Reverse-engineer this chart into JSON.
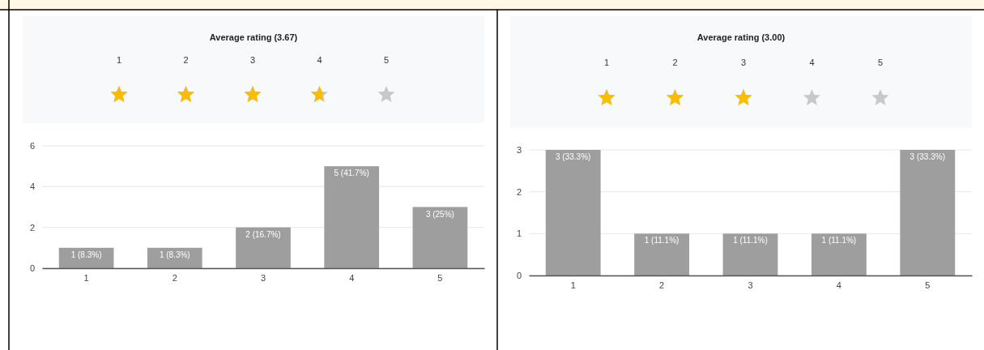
{
  "chart_data": [
    {
      "type": "bar",
      "title": "Average rating (3.67)",
      "annotations": [
        "1",
        "2",
        "3",
        "4",
        "5"
      ],
      "categories": [
        "1",
        "2",
        "3",
        "4",
        "5"
      ],
      "values": [
        1,
        1,
        2,
        5,
        3
      ],
      "color": "#9e9e9e",
      "value_labels": [
        "1 (8.3%)",
        "1 (8.3%)",
        "2 (16.7%)",
        "5 (41.7%)",
        "3 (25%)"
      ],
      "ylim": [
        0,
        6
      ],
      "yticks": [
        0,
        2,
        4,
        6
      ],
      "grid": "y"
    },
    {
      "type": "bar",
      "title": "Average rating (3.00)",
      "annotations": [
        "1",
        "2",
        "3",
        "4",
        "5"
      ],
      "categories": [
        "1",
        "2",
        "3",
        "4",
        "5"
      ],
      "values": [
        3,
        1,
        1,
        1,
        3
      ],
      "color": "#9e9e9e",
      "value_labels": [
        "3 (33.3%)",
        "1 (11.1%)",
        "1 (11.1%)",
        "1 (11.1%)",
        "3 (33.3%)"
      ],
      "ylim": [
        0,
        3
      ],
      "yticks": [
        0,
        1,
        2,
        3
      ],
      "grid": "y"
    }
  ]
}
